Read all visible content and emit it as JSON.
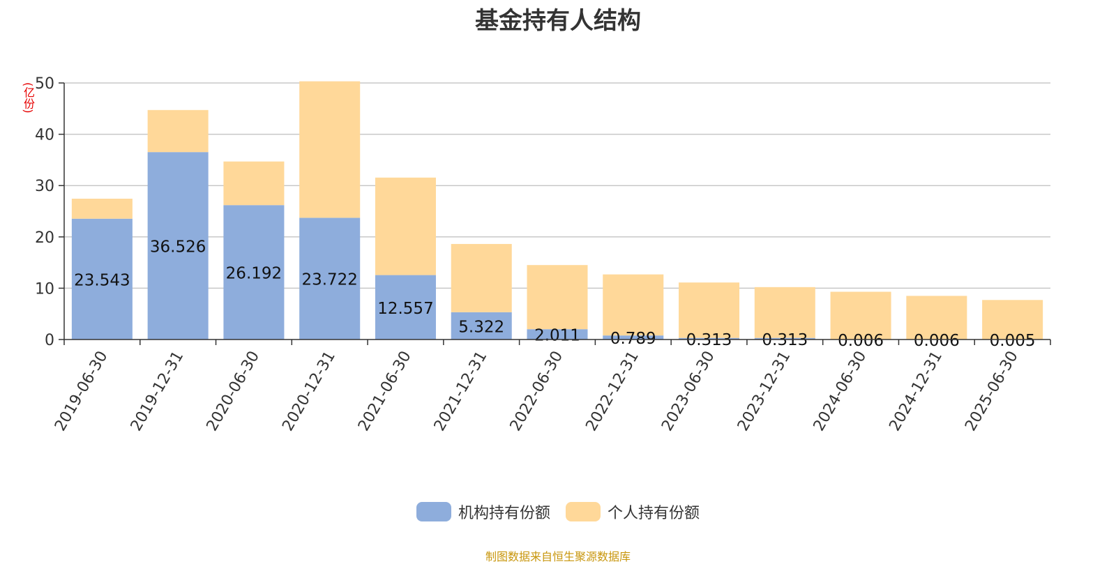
{
  "chart_data": {
    "type": "bar",
    "stacked": true,
    "title": "基金持有人结构",
    "ylabel": "(亿份)",
    "ylim": [
      0,
      50
    ],
    "yticks": [
      0,
      10,
      20,
      30,
      40,
      50
    ],
    "grid": true,
    "legend_position": "bottom",
    "categories": [
      "2019-06-30",
      "2019-12-31",
      "2020-06-30",
      "2020-12-31",
      "2021-06-30",
      "2021-12-31",
      "2022-06-30",
      "2022-12-31",
      "2023-06-30",
      "2023-12-31",
      "2024-06-30",
      "2024-12-31",
      "2025-06-30"
    ],
    "series": [
      {
        "name": "机构持有份额",
        "color": "#8eaddc",
        "values": [
          23.543,
          36.526,
          26.192,
          23.722,
          12.557,
          5.322,
          2.011,
          0.789,
          0.313,
          0.313,
          0.006,
          0.006,
          0.005
        ],
        "labels": [
          "23.543",
          "36.526",
          "26.192",
          "23.722",
          "12.557",
          "5.322",
          "2.011",
          "0.789",
          "0.313",
          "0.313",
          "0.006",
          "0.006",
          "0.005"
        ]
      },
      {
        "name": "个人持有份额",
        "color": "#ffd899",
        "values": [
          3.9,
          8.2,
          8.5,
          26.6,
          19.0,
          13.3,
          12.5,
          11.9,
          10.8,
          9.9,
          9.3,
          8.5,
          7.7
        ]
      }
    ],
    "source_note": "制图数据来自恒生聚源数据库"
  }
}
